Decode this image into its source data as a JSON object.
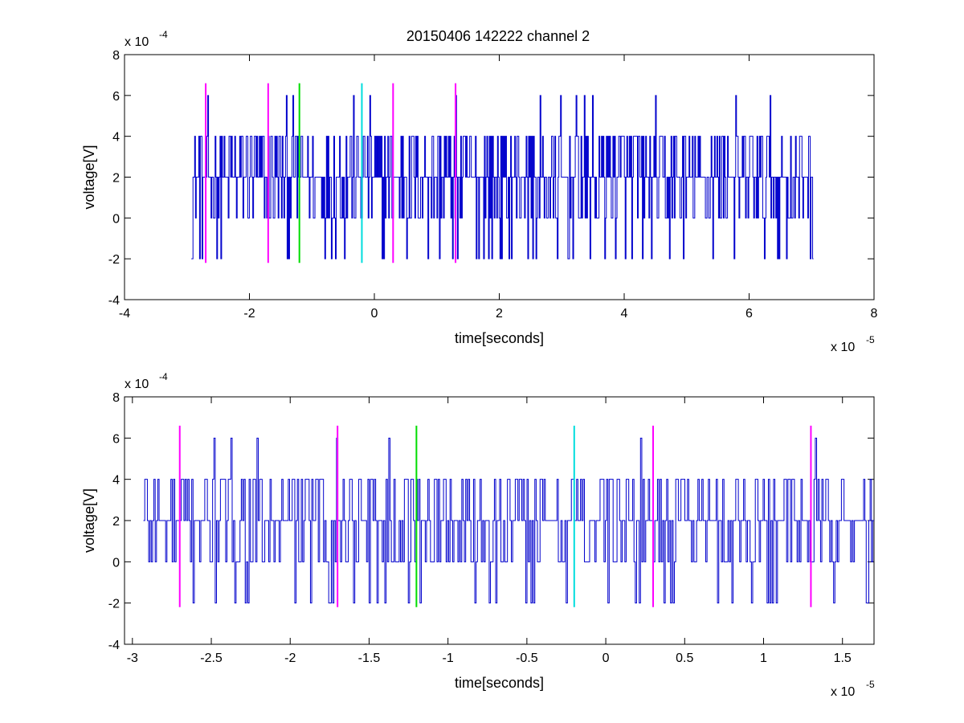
{
  "figure": {
    "title": "20150406 142222 channel 2"
  },
  "chart_data": [
    {
      "type": "line",
      "title": "20150406 142222 channel 2",
      "xlabel": "time[seconds]",
      "ylabel": "voltage[V]",
      "x_multiplier": "x 10",
      "x_multiplier_exp": "-5",
      "y_multiplier": "x 10",
      "y_multiplier_exp": "-4",
      "xlim": [
        -4,
        8
      ],
      "ylim": [
        -4,
        8
      ],
      "x_ticks": [
        "-4",
        "-2",
        "0",
        "2",
        "4",
        "6",
        "8"
      ],
      "y_ticks": [
        "-4",
        "-2",
        "0",
        "2",
        "4",
        "6",
        "8"
      ],
      "grid": false,
      "series": [
        {
          "color": "#0000cc",
          "x_start": -2.93,
          "x_end": 7.03,
          "levels": [
            -2,
            0,
            2,
            4,
            6
          ],
          "baseline": 2,
          "y_min": -2,
          "y_max": 6
        }
      ],
      "markers": [
        {
          "x": -2.7,
          "color": "#ff00ff",
          "y_from": -2.2,
          "y_to": 6.6
        },
        {
          "x": -1.7,
          "color": "#ff00ff",
          "y_from": -2.2,
          "y_to": 6.6
        },
        {
          "x": -1.2,
          "color": "#00dd00",
          "y_from": -2.2,
          "y_to": 6.6
        },
        {
          "x": -0.2,
          "color": "#00dddd",
          "y_from": -2.2,
          "y_to": 6.6
        },
        {
          "x": 0.3,
          "color": "#ff00ff",
          "y_from": -2.2,
          "y_to": 6.6
        },
        {
          "x": 1.3,
          "color": "#ff00ff",
          "y_from": -2.2,
          "y_to": 6.6
        }
      ]
    },
    {
      "type": "line",
      "title": "",
      "xlabel": "time[seconds]",
      "ylabel": "voltage[V]",
      "x_multiplier": "x 10",
      "x_multiplier_exp": "-5",
      "y_multiplier": "x 10",
      "y_multiplier_exp": "-4",
      "xlim": [
        -3.05,
        1.7
      ],
      "ylim": [
        -4,
        8
      ],
      "x_ticks": [
        "-3",
        "-2.5",
        "-2",
        "-1.5",
        "-1",
        "-0.5",
        "0",
        "0.5",
        "1",
        "1.5"
      ],
      "x_tick_values": [
        -3,
        -2.5,
        -2,
        -1.5,
        -1,
        -0.5,
        0,
        0.5,
        1,
        1.5
      ],
      "y_ticks": [
        "-4",
        "-2",
        "0",
        "2",
        "4",
        "6",
        "8"
      ],
      "grid": false,
      "series": [
        {
          "color": "#0000cc",
          "x_start": -2.93,
          "x_end": 1.7,
          "levels": [
            -2,
            0,
            2,
            4,
            6
          ],
          "baseline": 2,
          "y_min": -2,
          "y_max": 6
        }
      ],
      "markers": [
        {
          "x": -2.7,
          "color": "#ff00ff",
          "y_from": -2.2,
          "y_to": 6.6
        },
        {
          "x": -1.7,
          "color": "#ff00ff",
          "y_from": -2.2,
          "y_to": 6.6
        },
        {
          "x": -1.2,
          "color": "#00dd00",
          "y_from": -2.2,
          "y_to": 6.6
        },
        {
          "x": -0.2,
          "color": "#00dddd",
          "y_from": -2.2,
          "y_to": 6.6
        },
        {
          "x": 0.3,
          "color": "#ff00ff",
          "y_from": -2.2,
          "y_to": 6.6
        },
        {
          "x": 1.3,
          "color": "#ff00ff",
          "y_from": -2.2,
          "y_to": 6.6
        }
      ]
    }
  ]
}
